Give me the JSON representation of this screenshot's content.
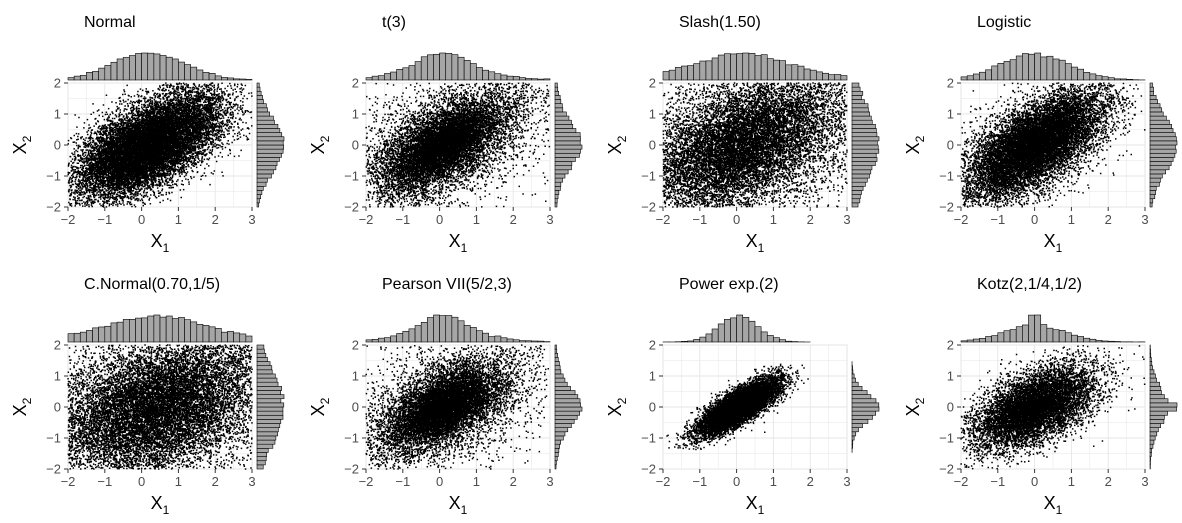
{
  "chart_data": {
    "type": "scatter",
    "layout": {
      "rows": 2,
      "cols": 4
    },
    "x_axis": {
      "label": "X",
      "subscript": "1",
      "lim": [
        -2,
        3
      ],
      "ticks": [
        -2,
        -1,
        0,
        1,
        2,
        3
      ],
      "tick_labels": [
        "−2",
        "−1",
        "0",
        "1",
        "2",
        "3"
      ]
    },
    "y_axis": {
      "label": "X",
      "subscript": "2",
      "lim": [
        -2,
        2
      ],
      "ticks": [
        -2,
        -1,
        0,
        1,
        2
      ],
      "tick_labels": [
        "−2",
        "−1",
        "0",
        "1",
        "2"
      ]
    },
    "grid": true,
    "colors": {
      "points": "#000000",
      "hist_fill": "#a6a6a6",
      "hist_stroke": "#000000",
      "grid": "#e6e6e6",
      "panel_border": "#cfcfcf",
      "axis_text": "#4d4d4d"
    },
    "panels": [
      {
        "title": "Normal",
        "n_points": 14000,
        "distribution": "normal",
        "correlation": 0.6,
        "x_range": [
          -2,
          3
        ],
        "y_range": [
          -2,
          2
        ],
        "x_center": 0.2,
        "y_center": 0.0,
        "x_scale": 1.0,
        "y_scale": 0.85
      },
      {
        "title": "t(3)",
        "n_points": 11000,
        "distribution": "t",
        "df": 3,
        "correlation": 0.6,
        "x_range": [
          -2,
          3
        ],
        "y_range": [
          -2,
          2
        ],
        "x_center": 0.1,
        "y_center": 0.0,
        "x_scale": 0.85,
        "y_scale": 0.75
      },
      {
        "title": "Slash(1.50)",
        "n_points": 11000,
        "distribution": "slash",
        "q": 1.5,
        "correlation": 0.5,
        "x_range": [
          -2,
          3
        ],
        "y_range": [
          -2,
          2
        ],
        "x_center": 0.2,
        "y_center": 0.0,
        "x_scale": 1.0,
        "y_scale": 0.85
      },
      {
        "title": "Logistic",
        "n_points": 12000,
        "distribution": "logistic",
        "correlation": 0.65,
        "x_range": [
          -2,
          3
        ],
        "y_range": [
          -2,
          2
        ],
        "x_center": 0.0,
        "y_center": 0.0,
        "x_scale": 0.75,
        "y_scale": 0.7
      },
      {
        "title": "C.Normal(0.70,1/5)",
        "n_points": 12000,
        "distribution": "contaminated_normal",
        "correlation": 0.4,
        "x_range": [
          -2,
          3
        ],
        "y_range": [
          -2,
          2
        ],
        "x_center": 0.4,
        "y_center": 0.0,
        "x_scale": 1.4,
        "y_scale": 1.1
      },
      {
        "title": "Pearson VII(5/2,3)",
        "n_points": 11000,
        "distribution": "pearson_vii",
        "correlation": 0.55,
        "x_range": [
          -2,
          3
        ],
        "y_range": [
          -2,
          2
        ],
        "x_center": 0.1,
        "y_center": 0.0,
        "x_scale": 0.95,
        "y_scale": 0.8
      },
      {
        "title": "Power exp.(2)",
        "n_points": 10000,
        "distribution": "power_exponential",
        "correlation": 0.8,
        "x_range": [
          -1.9,
          2.0
        ],
        "y_range": [
          -1.4,
          1.4
        ],
        "x_center": 0.05,
        "y_center": 0.0,
        "x_scale": 0.6,
        "y_scale": 0.5
      },
      {
        "title": "Kotz(2,1/4,1/2)",
        "n_points": 9000,
        "distribution": "kotz",
        "correlation": 0.55,
        "x_range": [
          -2,
          3
        ],
        "y_range": [
          -2,
          2
        ],
        "x_center": 0.0,
        "y_center": 0.0,
        "x_scale": 0.8,
        "y_scale": 0.65
      }
    ]
  }
}
